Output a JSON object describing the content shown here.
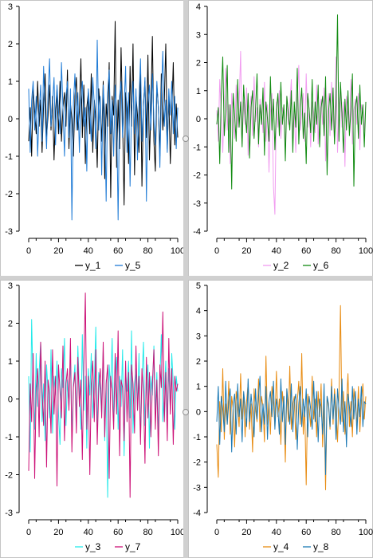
{
  "chart_data": [
    {
      "type": "line",
      "x_range": [
        0,
        100
      ],
      "ylim": [
        -3,
        3
      ],
      "x_ticks": [
        0,
        20,
        40,
        60,
        80,
        100
      ],
      "y_ticks": [
        -3,
        -2,
        -1,
        0,
        1,
        2,
        3
      ],
      "legend_position": "bottom",
      "grid": false,
      "series": [
        {
          "name": "y_1",
          "color": "#000000",
          "approx_values": [
            -0.6,
            0.3,
            -1.0,
            0.8,
            0.2,
            -0.4,
            1.0,
            -0.2,
            0.5,
            -0.9,
            0.4,
            1.2,
            -0.5,
            0.1,
            0.9,
            -0.3,
            0.6,
            -1.1,
            0.2,
            0.8,
            -0.4,
            1.0,
            -0.6,
            0.3,
            0.7,
            -0.2,
            1.3,
            -0.8,
            0.4,
            0.0,
            -1.0,
            0.6,
            1.1,
            -0.3,
            0.2,
            1.6,
            -0.5,
            0.9,
            -1.2,
            0.3,
            0.7,
            -0.4,
            1.2,
            -0.9,
            0.5,
            0.0,
            -1.3,
            0.8,
            0.2,
            -0.6,
            1.0,
            -1.6,
            0.4,
            -0.2,
            1.5,
            -2.1,
            0.6,
            0.1,
            2.6,
            -1.3,
            0.5,
            -0.8,
            1.9,
            0.0,
            -2.3,
            0.7,
            0.3,
            -1.2,
            1.4,
            -0.2,
            2.0,
            -1.5,
            0.6,
            0.1,
            -0.9,
            1.3,
            -1.8,
            0.4,
            1.0,
            -0.5,
            1.7,
            -1.1,
            0.2,
            2.2,
            -0.6,
            -1.4,
            0.9,
            0.3,
            -1.0,
            1.2,
            -0.3,
            0.5,
            2.0,
            -0.8,
            0.6,
            -1.2,
            0.1,
            1.5,
            -0.7,
            0.4,
            -0.5
          ]
        },
        {
          "name": "y_5",
          "color": "#1f7bd6",
          "approx_values": [
            0.8,
            -0.9,
            0.5,
            1.0,
            -0.3,
            0.6,
            -1.0,
            0.2,
            0.9,
            -0.6,
            1.4,
            0.1,
            -0.8,
            0.7,
            1.6,
            -0.2,
            0.4,
            1.1,
            -0.7,
            0.9,
            0.2,
            -0.4,
            1.5,
            0.3,
            -1.0,
            0.6,
            1.0,
            -0.5,
            0.8,
            -2.7,
            0.4,
            1.2,
            -0.3,
            0.7,
            -0.9,
            0.5,
            1.0,
            -0.2,
            0.3,
            -1.4,
            0.8,
            0.2,
            -0.6,
            1.1,
            0.4,
            -0.8,
            2.1,
            -0.3,
            0.6,
            -1.5,
            0.9,
            0.1,
            -2.2,
            0.7,
            1.3,
            -0.4,
            0.5,
            -1.0,
            0.9,
            0.2,
            -2.7,
            0.6,
            1.0,
            -0.5,
            0.3,
            1.4,
            -0.9,
            0.7,
            -1.8,
            0.2,
            1.0,
            -0.4,
            0.8,
            -1.1,
            0.5,
            1.6,
            -0.6,
            0.3,
            1.1,
            -2.2,
            0.4,
            0.9,
            -0.3,
            1.2,
            0.0,
            -0.7,
            1.0,
            0.3,
            -1.3,
            0.6,
            1.8,
            -0.2,
            0.5,
            -0.9,
            0.8,
            0.1,
            1.0,
            -0.4,
            0.6,
            -0.8,
            0.3
          ]
        }
      ]
    },
    {
      "type": "line",
      "x_range": [
        0,
        100
      ],
      "ylim": [
        -4,
        4
      ],
      "x_ticks": [
        0,
        20,
        40,
        60,
        80,
        100
      ],
      "y_ticks": [
        -4,
        -3,
        -2,
        -1,
        0,
        1,
        2,
        3,
        4
      ],
      "legend_position": "bottom",
      "grid": false,
      "series": [
        {
          "name": "y_2",
          "color": "#f19cf0",
          "approx_values": [
            0.3,
            -0.8,
            1.4,
            0.2,
            -1.2,
            0.6,
            1.8,
            -0.4,
            0.5,
            -1.6,
            0.9,
            0.1,
            -0.7,
            1.2,
            -0.3,
            0.4,
            2.4,
            -0.9,
            0.6,
            -0.2,
            1.1,
            -1.3,
            0.3,
            0.8,
            -0.6,
            1.5,
            -0.1,
            0.4,
            -1.0,
            0.7,
            0.2,
            -0.5,
            1.3,
            -0.8,
            0.5,
            -1.9,
            0.2,
            0.9,
            -2.4,
            -3.4,
            0.6,
            -0.3,
            1.0,
            -0.7,
            0.4,
            0.1,
            -1.1,
            0.8,
            -0.2,
            0.5,
            1.4,
            -0.6,
            0.3,
            -1.2,
            0.7,
            1.9,
            -0.4,
            0.2,
            0.9,
            -0.8,
            1.6,
            -0.3,
            0.4,
            -1.0,
            0.6,
            0.2,
            -0.5,
            1.2,
            -0.9,
            0.3,
            0.7,
            -0.2,
            1.1,
            -1.5,
            0.4,
            0.9,
            -0.6,
            1.3,
            0.0,
            -0.8,
            2.2,
            -1.2,
            0.5,
            1.0,
            -0.3,
            0.6,
            -1.7,
            0.8,
            0.2,
            -0.5,
            1.4,
            -0.9,
            0.3,
            0.7,
            -0.2,
            0.9,
            -1.1,
            0.5,
            0.2,
            -0.4,
            0.6
          ]
        },
        {
          "name": "y_6",
          "color": "#108a10",
          "approx_values": [
            -0.2,
            0.4,
            -1.6,
            0.8,
            2.2,
            -0.6,
            0.3,
            1.9,
            -1.2,
            0.5,
            -2.5,
            0.9,
            0.1,
            -0.8,
            1.4,
            -0.3,
            0.6,
            -1.0,
            1.2,
            0.2,
            -0.5,
            0.9,
            -1.4,
            0.4,
            1.0,
            -0.7,
            0.3,
            1.6,
            -0.9,
            0.5,
            -0.2,
            1.1,
            -1.3,
            0.6,
            0.0,
            -0.8,
            1.5,
            -0.4,
            0.7,
            -1.1,
            0.3,
            0.9,
            -0.6,
            1.3,
            -0.2,
            0.5,
            -1.5,
            0.8,
            0.2,
            -0.4,
            1.0,
            -1.2,
            0.6,
            -0.3,
            1.8,
            -0.9,
            0.4,
            1.1,
            -0.7,
            0.2,
            -1.6,
            0.9,
            0.3,
            -0.5,
            1.4,
            -0.8,
            0.6,
            -0.2,
            1.2,
            -1.0,
            0.4,
            0.8,
            -0.6,
            1.5,
            -2.0,
            0.3,
            0.9,
            -0.4,
            1.1,
            -0.9,
            0.5,
            3.7,
            -0.8,
            1.3,
            0.2,
            -1.2,
            0.7,
            -0.4,
            1.0,
            -0.6,
            0.3,
            1.6,
            -2.4,
            0.4,
            0.8,
            -0.7,
            1.2,
            -0.2,
            0.5,
            -1.0,
            0.6
          ]
        }
      ]
    },
    {
      "type": "line",
      "x_range": [
        0,
        100
      ],
      "ylim": [
        -3,
        3
      ],
      "x_ticks": [
        0,
        20,
        40,
        60,
        80,
        100
      ],
      "y_ticks": [
        -3,
        -2,
        -1,
        0,
        1,
        2,
        3
      ],
      "legend_position": "bottom",
      "grid": false,
      "series": [
        {
          "name": "y_3",
          "color": "#23eaea",
          "approx_values": [
            0.6,
            -1.4,
            2.1,
            0.3,
            -0.8,
            1.2,
            -0.2,
            0.7,
            1.5,
            -0.6,
            0.4,
            -1.1,
            0.9,
            0.2,
            -0.5,
            1.3,
            -0.9,
            0.6,
            0.1,
            1.0,
            -0.4,
            -1.2,
            0.8,
            0.3,
            1.6,
            -0.7,
            0.5,
            -0.2,
            1.1,
            -1.0,
            0.4,
            0.9,
            -0.6,
            1.4,
            0.2,
            -0.8,
            1.7,
            -0.3,
            0.6,
            -1.3,
            0.8,
            0.1,
            1.2,
            -0.5,
            0.4,
            1.9,
            -0.9,
            0.7,
            0.2,
            -0.4,
            1.3,
            -1.1,
            0.5,
            -2.6,
            0.9,
            0.3,
            1.6,
            -0.6,
            0.4,
            1.1,
            -0.8,
            0.6,
            -0.2,
            1.3,
            -1.5,
            0.7,
            0.2,
            1.0,
            -0.5,
            1.8,
            -0.9,
            0.4,
            0.8,
            -0.3,
            1.2,
            -1.0,
            0.5,
            1.5,
            -0.7,
            0.3,
            0.9,
            -1.3,
            0.6,
            0.1,
            1.4,
            -0.4,
            0.7,
            -0.9,
            0.5,
            1.7,
            -0.6,
            0.2,
            1.0,
            -0.5,
            0.8,
            -0.3,
            1.2,
            0.4,
            -0.8,
            0.6,
            0.2
          ]
        },
        {
          "name": "y_7",
          "color": "#cc1177",
          "approx_values": [
            -1.9,
            0.4,
            -0.6,
            1.2,
            -2.1,
            0.3,
            0.8,
            -1.0,
            1.5,
            0.2,
            -0.7,
            1.0,
            -1.8,
            0.5,
            0.1,
            -0.9,
            1.3,
            -0.4,
            0.6,
            -2.3,
            0.9,
            0.2,
            -0.5,
            1.4,
            -1.1,
            0.4,
            0.8,
            -0.3,
            1.6,
            -1.4,
            0.3,
            0.7,
            -0.9,
            1.1,
            -0.2,
            0.5,
            -1.6,
            0.9,
            2.8,
            -0.8,
            0.6,
            -2.0,
            0.4,
            1.0,
            -0.6,
            1.3,
            -1.2,
            0.3,
            0.8,
            -0.5,
            1.5,
            -1.0,
            0.4,
            0.9,
            -2.1,
            0.6,
            0.2,
            -0.8,
            1.2,
            -0.4,
            1.8,
            -1.5,
            0.5,
            0.3,
            -1.1,
            1.0,
            -0.6,
            0.7,
            -2.6,
            0.9,
            0.4,
            -0.9,
            1.4,
            -0.3,
            0.6,
            -1.2,
            0.8,
            0.2,
            -1.7,
            1.1,
            -0.5,
            0.7,
            -1.0,
            0.4,
            1.3,
            -0.8,
            0.5,
            -1.5,
            0.9,
            0.3,
            2.3,
            -0.6,
            0.7,
            -1.1,
            1.6,
            -0.4,
            0.8,
            -1.2,
            0.6,
            0.2,
            0.4
          ]
        }
      ]
    },
    {
      "type": "line",
      "x_range": [
        0,
        100
      ],
      "ylim": [
        -4,
        5
      ],
      "x_ticks": [
        0,
        20,
        40,
        60,
        80,
        100
      ],
      "y_ticks": [
        -4,
        -3,
        -2,
        -1,
        0,
        1,
        2,
        3,
        4,
        5
      ],
      "legend_position": "bottom",
      "grid": false,
      "series": [
        {
          "name": "y_4",
          "color": "#e88b10",
          "approx_values": [
            -1.3,
            -2.6,
            0.4,
            -0.8,
            1.7,
            -1.1,
            0.3,
            -0.5,
            1.2,
            -0.9,
            0.6,
            0.1,
            -1.4,
            0.8,
            0.2,
            -0.6,
            1.5,
            -0.3,
            0.7,
            -1.0,
            0.4,
            1.1,
            -0.7,
            0.3,
            -1.6,
            0.9,
            0.1,
            -0.4,
            1.3,
            -0.8,
            0.6,
            0.2,
            -1.2,
            2.2,
            -0.5,
            0.4,
            -0.9,
            1.0,
            0.3,
            -0.6,
            1.6,
            -0.2,
            0.5,
            -1.3,
            0.8,
            0.1,
            -2.0,
            0.9,
            -0.4,
            1.8,
            -0.7,
            0.3,
            0.6,
            -1.1,
            0.4,
            1.2,
            -0.5,
            2.3,
            -0.9,
            0.2,
            -2.9,
            0.7,
            0.1,
            -0.6,
            1.4,
            -0.3,
            0.5,
            -1.0,
            0.8,
            -0.2,
            1.1,
            -1.4,
            0.4,
            -3.1,
            0.6,
            0.2,
            -0.7,
            1.3,
            -0.5,
            0.9,
            0.1,
            -1.2,
            0.6,
            4.2,
            -0.4,
            0.8,
            -0.9,
            0.3,
            1.5,
            -0.6,
            0.4,
            -1.0,
            0.9,
            0.2,
            -0.5,
            1.0,
            -0.8,
            0.4,
            1.1,
            -0.3,
            0.6
          ]
        },
        {
          "name": "y_8",
          "color": "#1a78b4",
          "approx_values": [
            -0.4,
            1.0,
            -1.3,
            0.6,
            0.1,
            -0.8,
            1.2,
            -0.5,
            0.4,
            0.9,
            -1.6,
            0.3,
            0.7,
            -0.9,
            1.1,
            -0.2,
            0.5,
            -1.2,
            0.8,
            0.2,
            -0.6,
            1.3,
            -0.4,
            0.7,
            0.0,
            -1.0,
            0.9,
            -0.3,
            0.6,
            1.4,
            -0.8,
            0.3,
            -0.5,
            1.0,
            -1.1,
            0.4,
            0.8,
            -0.2,
            1.2,
            -0.7,
            0.5,
            0.1,
            -0.9,
            1.3,
            -0.4,
            0.6,
            -1.3,
            0.9,
            0.2,
            -0.5,
            1.1,
            -0.8,
            0.4,
            0.7,
            -1.5,
            0.3,
            1.0,
            -0.6,
            0.5,
            -0.2,
            0.9,
            -1.0,
            0.6,
            0.1,
            -0.7,
            1.2,
            -0.4,
            0.8,
            -1.2,
            0.5,
            0.2,
            -0.9,
            1.1,
            -2.5,
            0.6,
            0.3,
            -0.6,
            1.0,
            -0.3,
            0.7,
            -1.1,
            0.9,
            0.1,
            -0.5,
            1.3,
            -0.8,
            0.4,
            -1.4,
            0.7,
            0.2,
            -0.6,
            1.0,
            -0.3,
            0.8,
            -0.9,
            0.5,
            -0.2,
            1.0,
            -0.6,
            0.4,
            0.3
          ]
        }
      ]
    }
  ]
}
